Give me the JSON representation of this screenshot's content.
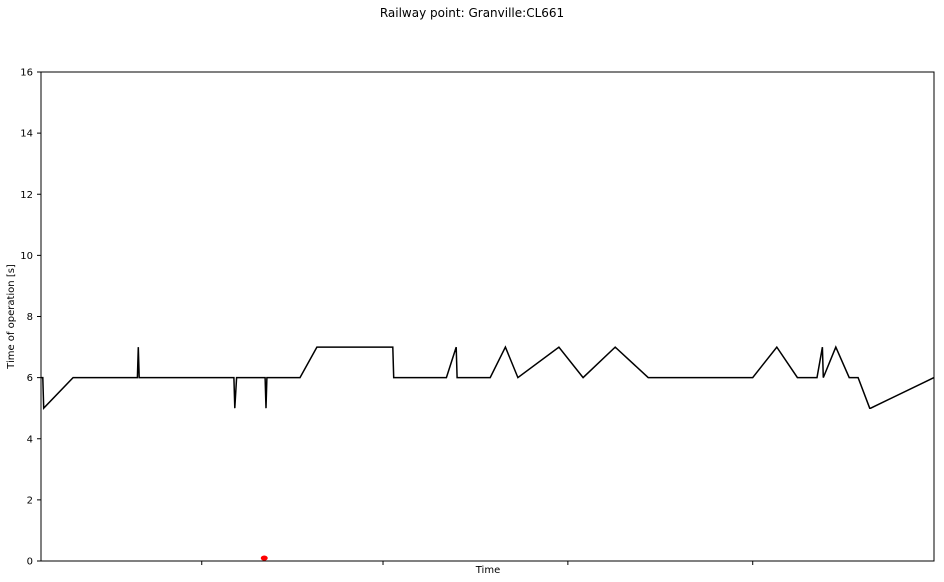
{
  "chart_data": {
    "type": "line",
    "title": "Railway point: Granville:CL661",
    "xlabel": "Time",
    "ylabel": "Time of operation [s]",
    "xlim": [
      0,
      1000
    ],
    "ylim": [
      0,
      16
    ],
    "yticks": [
      0,
      2,
      4,
      6,
      8,
      10,
      12,
      14,
      16
    ],
    "xticks": [
      180,
      383,
      590,
      797
    ],
    "show_x_tick_labels": false,
    "grid": false,
    "line_color": "#000000",
    "series": [
      {
        "x": [
          0,
          2,
          3,
          36,
          108,
          109,
          110,
          216,
          217,
          219,
          251,
          252,
          253,
          290,
          309,
          394,
          395,
          454,
          465,
          466,
          503,
          520,
          534,
          580,
          607,
          643,
          680,
          797,
          824,
          847,
          869,
          875,
          876,
          890,
          905,
          915,
          928,
          929,
          1000
        ],
        "y": [
          6,
          6,
          5,
          6,
          6,
          7,
          6,
          6,
          5,
          6,
          6,
          5,
          6,
          6,
          7,
          7,
          6,
          6,
          7,
          6,
          6,
          7,
          6,
          7,
          6,
          7,
          6,
          6,
          7,
          6,
          6,
          7,
          6,
          7,
          6,
          6,
          5,
          5,
          6
        ]
      }
    ],
    "markers": [
      {
        "x": 250,
        "y": 0.08,
        "color": "#ff0000"
      }
    ]
  }
}
